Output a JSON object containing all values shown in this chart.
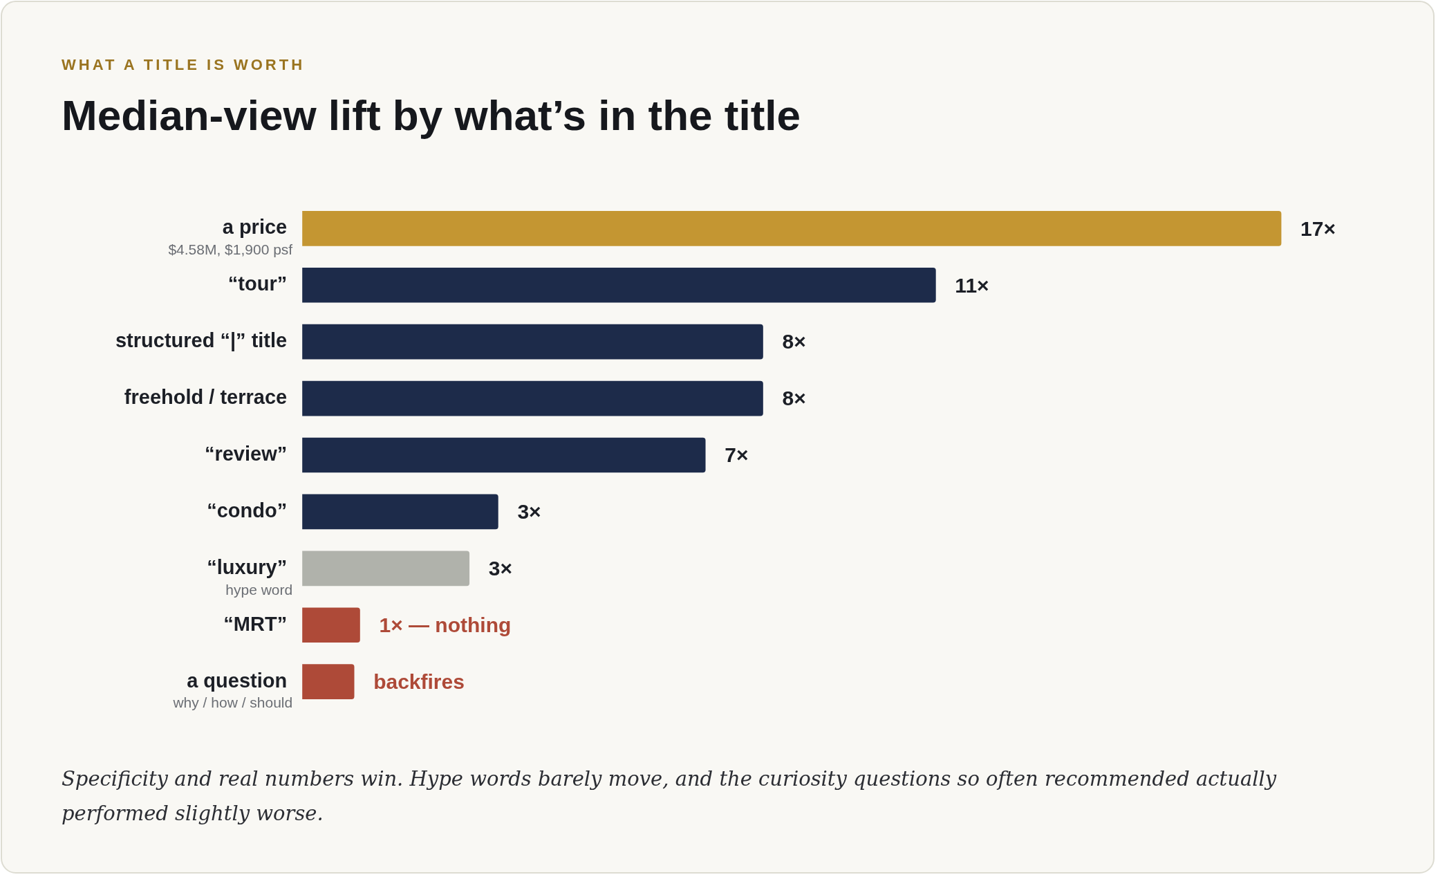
{
  "chart_data": {
    "type": "bar",
    "orientation": "horizontal",
    "subtitle": "WHAT A TITLE IS WORTH",
    "title": "Median-view lift by what’s in the title",
    "categories": [
      "a price\n$4.58M, $1,900 psf",
      "“tour”",
      "structured “|” title",
      "freehold / terrace",
      "“review”",
      "“condo”",
      "“luxury”\nhype word",
      "“MRT”",
      "a question\nwhy / how / should"
    ],
    "values": [
      17,
      11,
      8,
      8,
      7,
      3.4,
      2.9,
      1,
      0.9
    ],
    "colors": [
      "#c49632",
      "#1d2b4a",
      "#1d2b4a",
      "#1d2b4a",
      "#1d2b4a",
      "#1d2b4a",
      "#b0b2ab",
      "#ae4a38",
      "#ae4a38"
    ],
    "value_labels": [
      "17×",
      "11×",
      "8×",
      "8×",
      "7×",
      "3×",
      "3×",
      "1× — nothing",
      "backfires"
    ],
    "annotations": [
      "Specificity and real numbers win. Hype words barely move, and the curiosity questions so often recommended actually performed slightly worse."
    ],
    "legend": false
  }
}
